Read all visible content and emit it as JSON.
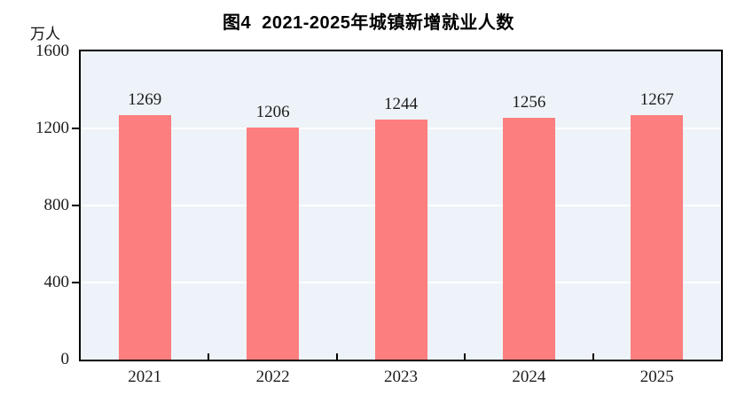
{
  "figure": {
    "unit_label": "万人"
  },
  "chart_data": {
    "type": "bar",
    "title": "图4  2021-2025年城镇新增就业人数",
    "categories": [
      "2021",
      "2022",
      "2023",
      "2024",
      "2025"
    ],
    "values": [
      1269,
      1206,
      1244,
      1256,
      1267
    ],
    "xlabel": "",
    "ylabel": "万人",
    "ylim": [
      0,
      1600
    ],
    "yticks": [
      0,
      400,
      800,
      1200,
      1600
    ],
    "gridline_values": [
      400,
      800,
      1200
    ],
    "grid": true,
    "legend_position": "none",
    "bar_labels_shown": true,
    "colors": {
      "bar": "#FD7E7E",
      "plot_background": "#EDF3F8",
      "gridline": "#FFFFFF",
      "axis": "#000000",
      "text": "#1C1C1C"
    }
  }
}
